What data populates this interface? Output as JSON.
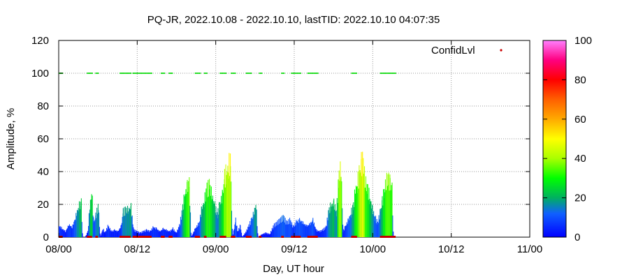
{
  "chart_data": {
    "type": "bar",
    "title": "PQ-JR, 2022.10.08 - 2022.10.10, lastTID: 2022.10.10 04:07:35",
    "xlabel": "Day, UT hour",
    "ylabel": "Amplitude, %",
    "xlim": [
      0,
      72
    ],
    "ylim": [
      0,
      120
    ],
    "x_ticks": [
      {
        "x": 0,
        "label": "08/00"
      },
      {
        "x": 12,
        "label": "08/12"
      },
      {
        "x": 24,
        "label": "09/00"
      },
      {
        "x": 36,
        "label": "09/12"
      },
      {
        "x": 48,
        "label": "10/00"
      },
      {
        "x": 60,
        "label": "10/12"
      },
      {
        "x": 72,
        "label": "11/00"
      }
    ],
    "y_ticks": [
      0,
      20,
      40,
      60,
      80,
      100,
      120
    ],
    "grid": true,
    "legend": {
      "label": "ConfidLvl",
      "position": "top-right",
      "color": "#cc0000"
    },
    "colorbar": {
      "min": 0,
      "max": 100,
      "ticks": [
        0,
        20,
        40,
        60,
        80,
        100
      ]
    },
    "confidence_segments": [
      [
        0.0,
        0.6
      ],
      [
        4.3,
        5.1
      ],
      [
        5.6,
        6.0
      ],
      [
        9.3,
        11.0
      ],
      [
        11.3,
        14.2
      ],
      [
        15.6,
        16.2
      ],
      [
        16.8,
        17.4
      ],
      [
        20.8,
        21.6
      ],
      [
        22.2,
        22.6
      ],
      [
        24.6,
        25.6
      ],
      [
        26.3,
        27.0
      ],
      [
        28.6,
        29.5
      ],
      [
        30.6,
        31.0
      ],
      [
        34.0,
        34.4
      ],
      [
        35.5,
        37.0
      ],
      [
        38.0,
        39.6
      ],
      [
        44.7,
        45.6
      ],
      [
        49.1,
        51.5
      ]
    ],
    "amplitude_series": [
      [
        0.0,
        8
      ],
      [
        0.5,
        6
      ],
      [
        1.0,
        4
      ],
      [
        1.5,
        9
      ],
      [
        2.0,
        7
      ],
      [
        2.5,
        14
      ],
      [
        3.0,
        22
      ],
      [
        3.4,
        24
      ],
      [
        3.6,
        0
      ],
      [
        4.0,
        0
      ],
      [
        4.4,
        4
      ],
      [
        4.7,
        22
      ],
      [
        5.0,
        32
      ],
      [
        5.3,
        10
      ],
      [
        5.6,
        15
      ],
      [
        6.0,
        22
      ],
      [
        6.3,
        0
      ],
      [
        6.7,
        6
      ],
      [
        7.0,
        3
      ],
      [
        7.5,
        8
      ],
      [
        8.0,
        4
      ],
      [
        8.5,
        5
      ],
      [
        9.0,
        4
      ],
      [
        9.5,
        8
      ],
      [
        9.8,
        18
      ],
      [
        10.2,
        19
      ],
      [
        10.6,
        20
      ],
      [
        11.0,
        21
      ],
      [
        11.4,
        5
      ],
      [
        11.9,
        4
      ],
      [
        12.4,
        3
      ],
      [
        12.9,
        4
      ],
      [
        13.4,
        5
      ],
      [
        13.9,
        4
      ],
      [
        14.4,
        7
      ],
      [
        14.9,
        6
      ],
      [
        15.4,
        4
      ],
      [
        15.9,
        6
      ],
      [
        16.4,
        5
      ],
      [
        16.9,
        4
      ],
      [
        17.4,
        6
      ],
      [
        17.9,
        3
      ],
      [
        18.4,
        8
      ],
      [
        18.8,
        18
      ],
      [
        19.2,
        30
      ],
      [
        19.6,
        36
      ],
      [
        19.9,
        38
      ],
      [
        20.2,
        0
      ],
      [
        20.8,
        6
      ],
      [
        21.4,
        10
      ],
      [
        21.8,
        20
      ],
      [
        22.2,
        26
      ],
      [
        22.6,
        34
      ],
      [
        23.0,
        36
      ],
      [
        23.4,
        30
      ],
      [
        23.8,
        22
      ],
      [
        24.2,
        16
      ],
      [
        24.6,
        24
      ],
      [
        25.0,
        30
      ],
      [
        25.3,
        42
      ],
      [
        25.6,
        46
      ],
      [
        25.9,
        51
      ],
      [
        26.2,
        53
      ],
      [
        26.5,
        0
      ],
      [
        27.0,
        12
      ],
      [
        27.3,
        4
      ],
      [
        27.7,
        8
      ],
      [
        28.0,
        0
      ],
      [
        28.6,
        4
      ],
      [
        29.0,
        8
      ],
      [
        29.4,
        12
      ],
      [
        29.8,
        18
      ],
      [
        30.1,
        24
      ],
      [
        30.4,
        0
      ],
      [
        31.0,
        2
      ],
      [
        31.6,
        3
      ],
      [
        32.2,
        2
      ],
      [
        32.8,
        8
      ],
      [
        33.3,
        10
      ],
      [
        33.8,
        12
      ],
      [
        34.3,
        14
      ],
      [
        34.8,
        10
      ],
      [
        35.3,
        12
      ],
      [
        35.8,
        7
      ],
      [
        36.3,
        11
      ],
      [
        36.8,
        12
      ],
      [
        37.3,
        10
      ],
      [
        37.8,
        8
      ],
      [
        38.3,
        9
      ],
      [
        38.8,
        12
      ],
      [
        39.3,
        5
      ],
      [
        39.8,
        4
      ],
      [
        40.3,
        5
      ],
      [
        40.8,
        7
      ],
      [
        41.2,
        18
      ],
      [
        41.6,
        23
      ],
      [
        42.0,
        24
      ],
      [
        42.4,
        18
      ],
      [
        42.8,
        44
      ],
      [
        43.1,
        50
      ],
      [
        43.4,
        4
      ],
      [
        43.8,
        8
      ],
      [
        44.2,
        12
      ],
      [
        44.6,
        17
      ],
      [
        45.0,
        22
      ],
      [
        45.3,
        34
      ],
      [
        45.6,
        38
      ],
      [
        45.9,
        45
      ],
      [
        46.2,
        52
      ],
      [
        46.5,
        54
      ],
      [
        46.8,
        40
      ],
      [
        47.1,
        35
      ],
      [
        47.5,
        28
      ],
      [
        47.9,
        20
      ],
      [
        48.3,
        14
      ],
      [
        48.7,
        10
      ],
      [
        49.1,
        18
      ],
      [
        49.4,
        25
      ],
      [
        49.7,
        33
      ],
      [
        50.0,
        40
      ],
      [
        50.3,
        42
      ],
      [
        50.6,
        38
      ],
      [
        50.9,
        34
      ],
      [
        51.1,
        0
      ]
    ]
  }
}
